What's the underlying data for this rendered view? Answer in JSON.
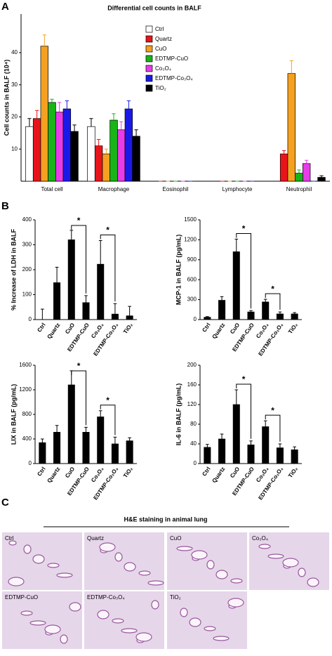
{
  "panels": [
    "A",
    "B",
    "C"
  ],
  "chart_data": [
    {
      "type": "bar",
      "title": "Differential cell counts in BALF",
      "ylabel": "Cell counts in BALF (10⁴)",
      "categories": [
        "Total cell",
        "Macrophage",
        "Eosinophil",
        "Lymphocyte",
        "Neutrophil"
      ],
      "ylim": [
        0,
        52
      ],
      "yticks": [
        10,
        20,
        30,
        40
      ],
      "legend": "upper right",
      "series": [
        {
          "name": "Ctrl",
          "color": "#ffffff",
          "values": [
            17,
            17,
            0,
            0,
            0
          ],
          "errors": [
            2.5,
            2.5,
            0,
            0,
            0
          ]
        },
        {
          "name": "Quartz",
          "color": "#e8141b",
          "values": [
            19.5,
            11,
            0,
            0,
            8.5
          ],
          "errors": [
            2.5,
            2,
            0,
            0,
            1
          ]
        },
        {
          "name": "CuO",
          "color": "#f4a020",
          "values": [
            42,
            8.5,
            0,
            0,
            33.5
          ],
          "errors": [
            3.5,
            1.5,
            0,
            0,
            4
          ]
        },
        {
          "name": "EDTMP-CuO",
          "color": "#18b418",
          "values": [
            24.5,
            19,
            0,
            0,
            2.5
          ],
          "errors": [
            1,
            2,
            0,
            0,
            1
          ]
        },
        {
          "name": "Co₃O₄",
          "color": "#e83ce8",
          "values": [
            21.5,
            16,
            0,
            0,
            5.5
          ],
          "errors": [
            3,
            2.5,
            0,
            0,
            1
          ]
        },
        {
          "name": "EDTMP-Co₃O₄",
          "color": "#1a1ae8",
          "values": [
            22.5,
            22.5,
            0,
            0,
            0
          ],
          "errors": [
            2.5,
            2.5,
            0,
            0,
            0
          ]
        },
        {
          "name": "TiO₂",
          "color": "#000000",
          "values": [
            15.5,
            14,
            0,
            0,
            1.2
          ],
          "errors": [
            2,
            2,
            0,
            0,
            0.5
          ]
        }
      ]
    },
    {
      "type": "bar",
      "ylabel": "% Increase of LDH in BALF",
      "color": "#000000",
      "categories": [
        "Ctrl",
        "Quartz",
        "CuO",
        "EDTMP-CuO",
        "Co₃O₄",
        "EDTMP-Co₃O₄",
        "TiO₂"
      ],
      "values": [
        0,
        148,
        320,
        68,
        222,
        22,
        15
      ],
      "errors": [
        42,
        62,
        38,
        28,
        95,
        42,
        38
      ],
      "ylim": [
        0,
        400
      ],
      "yticks": [
        0,
        100,
        200,
        300,
        400
      ],
      "significance": [
        {
          "label": "*",
          "pair": [
            2,
            3
          ]
        },
        {
          "label": "*",
          "pair": [
            4,
            5
          ]
        }
      ]
    },
    {
      "type": "bar",
      "ylabel": "MCP-1 in BALF (pg/mL)",
      "color": "#000000",
      "categories": [
        "Ctrl",
        "Quartz",
        "CuO",
        "EDTMP-CuO",
        "Co₃O₄",
        "EDTMP-Co₃O₄",
        "TiO₂"
      ],
      "values": [
        35,
        290,
        1020,
        115,
        265,
        85,
        85
      ],
      "errors": [
        10,
        55,
        190,
        20,
        40,
        30,
        20
      ],
      "ylim": [
        0,
        1500
      ],
      "yticks": [
        0,
        300,
        600,
        900,
        1200,
        1500
      ],
      "significance": [
        {
          "label": "*",
          "pair": [
            2,
            3
          ]
        },
        {
          "label": "*",
          "pair": [
            4,
            5
          ]
        }
      ]
    },
    {
      "type": "bar",
      "ylabel": "LIX in BALF (pg/mL)",
      "color": "#000000",
      "categories": [
        "Ctrl",
        "Quartz",
        "CuO",
        "EDTMP-CuO",
        "Co₃O₄",
        "EDTMP-Co₃O₄",
        "TiO₂"
      ],
      "values": [
        340,
        510,
        1280,
        510,
        760,
        320,
        370
      ],
      "errors": [
        60,
        110,
        230,
        80,
        100,
        110,
        50
      ],
      "ylim": [
        0,
        1600
      ],
      "yticks": [
        0,
        400,
        800,
        1200,
        1600
      ],
      "significance": [
        {
          "label": "*",
          "pair": [
            2,
            3
          ]
        },
        {
          "label": "*",
          "pair": [
            4,
            5
          ]
        }
      ]
    },
    {
      "type": "bar",
      "ylabel": "IL-6 in BALF (pg/mL)",
      "color": "#000000",
      "categories": [
        "Ctrl",
        "Quartz",
        "CuO",
        "EDTMP-CuO",
        "Co₃O₄",
        "EDTMP-Co₃O₄",
        "TiO₂"
      ],
      "values": [
        33,
        50,
        120,
        38,
        75,
        32,
        28
      ],
      "errors": [
        6,
        10,
        30,
        8,
        12,
        8,
        6
      ],
      "ylim": [
        0,
        200
      ],
      "yticks": [
        0,
        40,
        80,
        120,
        160,
        200
      ],
      "significance": [
        {
          "label": "*",
          "pair": [
            2,
            3
          ]
        },
        {
          "label": "*",
          "pair": [
            4,
            5
          ]
        }
      ]
    }
  ],
  "histology": {
    "title": "H&E staining in animal lung",
    "labels": [
      "Ctrl",
      "Quartz",
      "CuO",
      "Co₃O₄",
      "EDTMP-CuO",
      "EDTMP-Co₃O₄",
      "TiO₂"
    ]
  }
}
